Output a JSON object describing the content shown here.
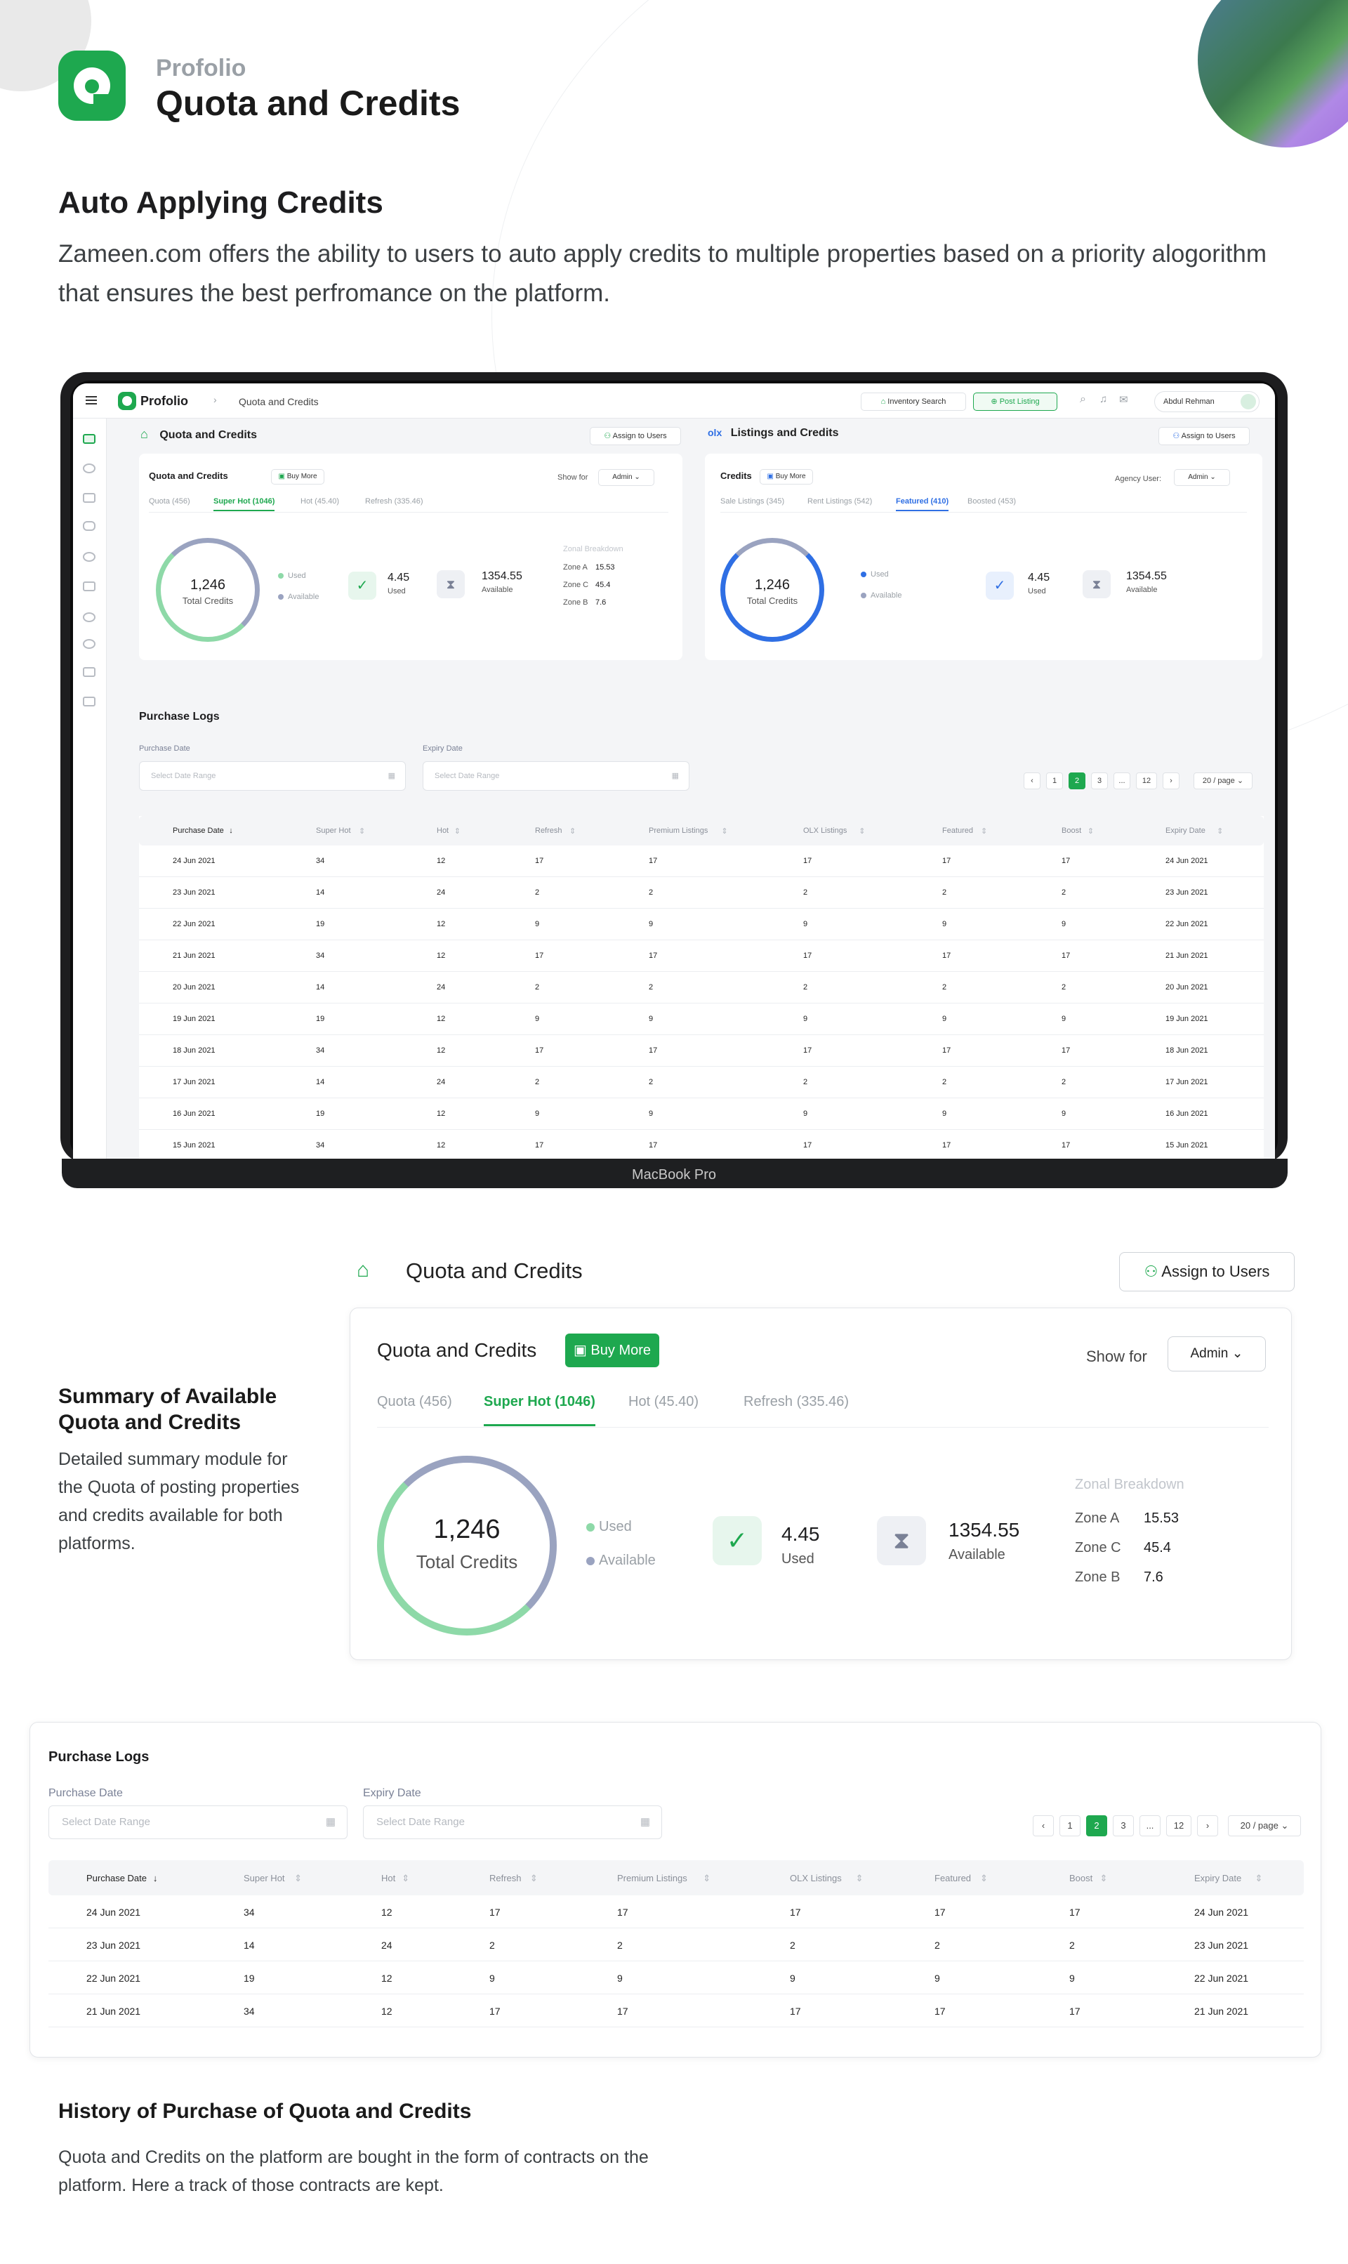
{
  "header": {
    "brand": "Profolio",
    "title": "Quota and Credits"
  },
  "section1": {
    "title": "Auto Applying Credits",
    "description": "Zameen.com offers the ability to users to auto apply credits to multiple properties based on a priority alogorithm that ensures the best perfromance on the platform."
  },
  "device_label": "MacBook Pro",
  "app": {
    "brand": "Profolio",
    "breadcrumb": "Quota and Credits",
    "inventory_search": "Inventory Search",
    "post_listing": "Post Listing",
    "user": "Abdul Rehman",
    "quota_panel": {
      "heading": "Quota and Credits",
      "assign": "Assign to Users",
      "card_title": "Quota and Credits",
      "buy_more": "Buy More",
      "show_for_label": "Show for",
      "show_for_value": "Admin",
      "tabs": [
        "Quota (456)",
        "Super Hot (1046)",
        "Hot (45.40)",
        "Refresh (335.46)"
      ],
      "total_value": "1,246",
      "total_label": "Total Credits",
      "legend_used": "Used",
      "legend_available": "Available",
      "used_value": "4.45",
      "used_label": "Used",
      "available_value": "1354.55",
      "available_label": "Available",
      "zonal_title": "Zonal Breakdown",
      "zones": [
        {
          "name": "Zone A",
          "value": "15.53"
        },
        {
          "name": "Zone C",
          "value": "45.4"
        },
        {
          "name": "Zone B",
          "value": "7.6"
        }
      ]
    },
    "listings_panel": {
      "heading": "Listings and Credits",
      "assign": "Assign to Users",
      "card_title": "Credits",
      "buy_more": "Buy More",
      "agency_label": "Agency User:",
      "agency_value": "Admin",
      "tabs": [
        "Sale Listings (345)",
        "Rent Listings (542)",
        "Featured (410)",
        "Boosted (453)"
      ],
      "total_value": "1,246",
      "total_label": "Total Credits",
      "legend_used": "Used",
      "legend_available": "Available",
      "used_value": "4.45",
      "used_label": "Used",
      "available_value": "1354.55",
      "available_label": "Available"
    },
    "logs": {
      "title": "Purchase Logs",
      "purchase_date_label": "Purchase Date",
      "expiry_date_label": "Expiry Date",
      "date_placeholder": "Select Date Range",
      "pages": [
        "1",
        "2",
        "3",
        "...",
        "12"
      ],
      "per_page": "20 / page",
      "columns": [
        "Purchase Date",
        "Super Hot",
        "Hot",
        "Refresh",
        "Premium Listings",
        "OLX Listings",
        "Featured",
        "Boost",
        "Expiry Date"
      ],
      "rows": [
        [
          "24 Jun 2021",
          "34",
          "12",
          "17",
          "17",
          "17",
          "17",
          "17",
          "24 Jun 2021"
        ],
        [
          "23 Jun 2021",
          "14",
          "24",
          "2",
          "2",
          "2",
          "2",
          "2",
          "23 Jun 2021"
        ],
        [
          "22 Jun 2021",
          "19",
          "12",
          "9",
          "9",
          "9",
          "9",
          "9",
          "22 Jun 2021"
        ],
        [
          "21 Jun 2021",
          "34",
          "12",
          "17",
          "17",
          "17",
          "17",
          "17",
          "21 Jun 2021"
        ],
        [
          "20 Jun 2021",
          "14",
          "24",
          "2",
          "2",
          "2",
          "2",
          "2",
          "20 Jun 2021"
        ],
        [
          "19 Jun 2021",
          "19",
          "12",
          "9",
          "9",
          "9",
          "9",
          "9",
          "19 Jun 2021"
        ],
        [
          "18 Jun 2021",
          "34",
          "12",
          "17",
          "17",
          "17",
          "17",
          "17",
          "18 Jun 2021"
        ],
        [
          "17 Jun 2021",
          "14",
          "24",
          "2",
          "2",
          "2",
          "2",
          "2",
          "17 Jun 2021"
        ],
        [
          "16 Jun 2021",
          "19",
          "12",
          "9",
          "9",
          "9",
          "9",
          "9",
          "16 Jun 2021"
        ],
        [
          "15 Jun 2021",
          "34",
          "12",
          "17",
          "17",
          "17",
          "17",
          "17",
          "15 Jun 2021"
        ]
      ]
    }
  },
  "section2": {
    "title": "Summary of Available Quota and Credits",
    "description": "Detailed summary module for the Quota of posting properties and credits available for both platforms."
  },
  "section3": {
    "title": "History of Purchase of Quota and Credits",
    "description": "Quota and Credits on the platform are bought in the form of contracts on the platform. Here a track of those contracts are kept."
  },
  "colors": {
    "brand_green": "#1ea84f",
    "accent_blue": "#2f6fe4",
    "used_green": "#8ed9a8",
    "available_grey": "#9aa3c0"
  }
}
